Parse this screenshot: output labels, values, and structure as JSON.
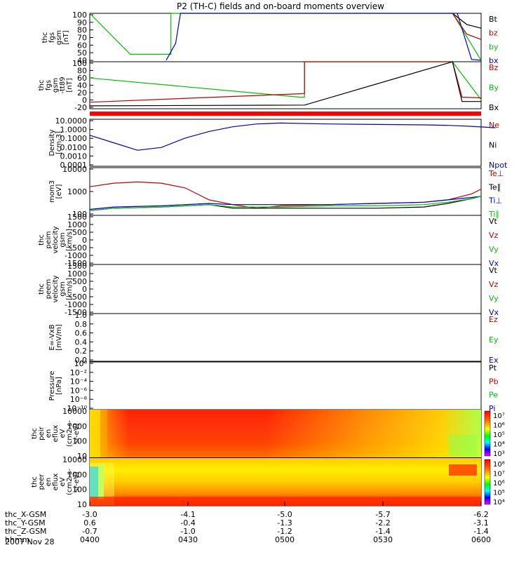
{
  "title": "P2 (TH-C) fields and on-board moments overview",
  "date": "2007 Nov 28",
  "colors": {
    "black": "#000000",
    "red": "#c00000",
    "green": "#00c000",
    "blue": "#0000c0"
  },
  "chart_data": [
    {
      "type": "line",
      "ylabel_lines": [
        "thc",
        "fgs",
        "gsm",
        "[nT]"
      ],
      "yticks": [
        "100",
        "90",
        "80",
        "70",
        "60",
        "50",
        "40"
      ],
      "ylim": [
        35,
        100
      ],
      "legend": [
        {
          "label": "Bt",
          "color": "black"
        },
        {
          "label": "bz",
          "color": "red"
        },
        {
          "label": "by",
          "color": "green"
        },
        {
          "label": "bx",
          "color": "blue"
        }
      ],
      "series": [
        {
          "color": "green",
          "x": [
            0,
            0.85,
            0.85,
            1.25,
            1.7,
            1.7,
            7.6,
            8.2
          ],
          "y": [
            100,
            45,
            45,
            45,
            45,
            100,
            100,
            37
          ]
        },
        {
          "color": "blue",
          "x": [
            1.6,
            1.8,
            1.9,
            7.7,
            8.0,
            8.2
          ],
          "y": [
            37,
            60,
            100,
            100,
            38,
            37
          ]
        },
        {
          "color": "black",
          "x": [
            7.6,
            7.9,
            8.2
          ],
          "y": [
            100,
            85,
            80
          ]
        },
        {
          "color": "red",
          "x": [
            7.6,
            7.9,
            8.2
          ],
          "y": [
            100,
            72,
            65
          ]
        }
      ]
    },
    {
      "type": "line",
      "ylabel_lines": [
        "thc",
        "fgs",
        "gsm",
        "-tt89",
        "[nT]"
      ],
      "yticks": [
        "100",
        "80",
        "60",
        "40",
        "20",
        "0",
        "-20"
      ],
      "ylim": [
        -30,
        100
      ],
      "legend": [
        {
          "label": "Bz",
          "color": "red"
        },
        {
          "label": "By",
          "color": "green"
        },
        {
          "label": "Bx",
          "color": "black"
        }
      ],
      "series": [
        {
          "color": "green",
          "x": [
            0,
            4.4,
            4.5,
            4.5,
            7.6,
            8.2
          ],
          "y": [
            55,
            2,
            2,
            100,
            100,
            -5
          ]
        },
        {
          "color": "red",
          "x": [
            0,
            4.5,
            4.5,
            7.6,
            7.8,
            8.2
          ],
          "y": [
            -12,
            12,
            100,
            100,
            2,
            0
          ]
        },
        {
          "color": "black",
          "x": [
            0,
            4.5,
            7.6,
            7.8,
            8.2
          ],
          "y": [
            -22,
            -20,
            100,
            -10,
            -10
          ]
        }
      ]
    },
    {
      "type": "line",
      "ylabel_lines": [
        "Density",
        "[cm-3]"
      ],
      "yticks": [
        "10.0000",
        "1.0000",
        "0.1000",
        "0.0100",
        "0.0010",
        "0.0001"
      ],
      "ylim": [
        -4,
        1
      ],
      "ylog": true,
      "legend": [
        {
          "label": "Ne",
          "color": "red"
        },
        {
          "label": "Ni",
          "color": "black"
        },
        {
          "label": "Npot",
          "color": "blue"
        }
      ],
      "series": [
        {
          "color": "blue",
          "x": [
            0,
            0.5,
            1.0,
            1.5,
            2.0,
            2.5,
            3.0,
            3.5,
            4.0,
            5.0,
            6.0,
            7.0,
            7.5,
            8.0,
            8.5
          ],
          "y": [
            -0.7,
            -1.5,
            -2.3,
            -2.0,
            -1.0,
            -0.3,
            0.2,
            0.5,
            0.6,
            0.5,
            0.45,
            0.4,
            0.35,
            0.25,
            0.1
          ]
        }
      ]
    },
    {
      "type": "line",
      "ylabel_lines": [
        "mom3",
        "[eV]"
      ],
      "yticks": [
        "10000",
        "1000",
        "100"
      ],
      "ylim": [
        2,
        4
      ],
      "ylog": true,
      "legend": [
        {
          "label": "Te⊥",
          "color": "red"
        },
        {
          "label": "Te∥",
          "color": "black"
        },
        {
          "label": "Ti⊥",
          "color": "blue"
        },
        {
          "label": "Ti∥",
          "color": "green"
        }
      ],
      "series": [
        {
          "color": "red",
          "x": [
            0,
            0.5,
            1.0,
            1.5,
            2.0,
            2.5,
            3.0,
            3.5,
            4.0,
            5.0,
            6.0,
            7.0,
            7.5,
            8.0,
            8.2
          ],
          "y": [
            3.2,
            3.35,
            3.4,
            3.35,
            3.15,
            2.65,
            2.45,
            2.3,
            2.4,
            2.45,
            2.5,
            2.55,
            2.65,
            2.9,
            3.1
          ]
        },
        {
          "color": "black",
          "x": [
            0,
            0.5,
            1.5,
            2.0,
            2.5,
            3.0,
            4.0,
            5.0,
            6.0,
            7.0,
            7.5,
            8.0,
            8.2
          ],
          "y": [
            2.2,
            2.3,
            2.35,
            2.4,
            2.45,
            2.3,
            2.3,
            2.3,
            2.3,
            2.35,
            2.5,
            2.7,
            2.8
          ]
        },
        {
          "color": "blue",
          "x": [
            0,
            0.5,
            1.5,
            2.0,
            2.5,
            3.0,
            4.0,
            5.0,
            6.0,
            7.0,
            7.5,
            8.0,
            8.2
          ],
          "y": [
            2.25,
            2.35,
            2.4,
            2.45,
            2.5,
            2.45,
            2.45,
            2.45,
            2.5,
            2.55,
            2.65,
            2.75,
            2.8
          ]
        },
        {
          "color": "green",
          "x": [
            0,
            0.5,
            1.5,
            2.0,
            2.5,
            3.0,
            4.0,
            5.0,
            6.0,
            7.0,
            7.5,
            8.0,
            8.2
          ],
          "y": [
            2.2,
            2.3,
            2.35,
            2.4,
            2.45,
            2.35,
            2.35,
            2.4,
            2.4,
            2.45,
            2.55,
            2.7,
            2.8
          ]
        }
      ]
    },
    {
      "type": "line",
      "ylabel_lines": [
        "thc",
        "peim",
        "velocity",
        "gsm",
        "[km/s]"
      ],
      "yticks": [
        "1500",
        "1000",
        "500",
        "0",
        "-500",
        "-1000",
        "-1500"
      ],
      "ylim": [
        -1500,
        1500
      ],
      "legend": [
        {
          "label": "Vt",
          "color": "black"
        },
        {
          "label": "Vz",
          "color": "red"
        },
        {
          "label": "Vy",
          "color": "green"
        },
        {
          "label": "Vx",
          "color": "blue"
        }
      ],
      "series": []
    },
    {
      "type": "line",
      "ylabel_lines": [
        "thc",
        "peem",
        "velocity",
        "gsm",
        "[km/s]"
      ],
      "yticks": [
        "1500",
        "1000",
        "500",
        "0",
        "-500",
        "-1000",
        "-1500"
      ],
      "ylim": [
        -1500,
        1500
      ],
      "legend": [
        {
          "label": "Vt",
          "color": "black"
        },
        {
          "label": "Vz",
          "color": "red"
        },
        {
          "label": "Vy",
          "color": "green"
        },
        {
          "label": "Vx",
          "color": "blue"
        }
      ],
      "series": []
    },
    {
      "type": "line",
      "ylabel_lines": [
        "E=-VxB",
        "[mV/m]"
      ],
      "yticks": [
        "1.0",
        "0.8",
        "0.6",
        "0.4",
        "0.2",
        "0.0"
      ],
      "ylim": [
        0,
        1
      ],
      "legend": [
        {
          "label": "Ez",
          "color": "red"
        },
        {
          "label": "Ey",
          "color": "green"
        },
        {
          "label": "Ex",
          "color": "blue"
        }
      ],
      "series": []
    },
    {
      "type": "line",
      "ylabel_lines": [
        "Pressure",
        "[nPa]"
      ],
      "yticks": [
        "10⁰",
        "10⁻²",
        "10⁻⁴",
        "10⁻⁶",
        "10⁻⁸",
        "10⁻¹⁰"
      ],
      "ylim": [
        -10,
        0
      ],
      "ylog": true,
      "legend": [
        {
          "label": "Pt",
          "color": "black"
        },
        {
          "label": "Pb",
          "color": "red"
        },
        {
          "label": "Pe",
          "color": "green"
        },
        {
          "label": "Pi",
          "color": "blue"
        }
      ],
      "series": []
    },
    {
      "type": "heatmap",
      "ylabel_lines": [
        "thc",
        "peir",
        "en",
        "eflux",
        "eV",
        "(cm2-s-",
        "sr-eV)"
      ],
      "yticks": [
        "10000",
        "1000",
        "100",
        "10"
      ],
      "colorbar": [
        "10⁷",
        "10⁶",
        "10⁵",
        "10⁴",
        "10³"
      ]
    },
    {
      "type": "heatmap",
      "ylabel_lines": [
        "thc",
        "peer",
        "en",
        "eflux",
        "eV",
        "(cm2-s-",
        "sr-eV)"
      ],
      "yticks": [
        "10000",
        "1000",
        "100",
        "10"
      ],
      "colorbar": [
        "10⁸",
        "10⁷",
        "10⁶",
        "10⁵",
        "10⁴"
      ]
    }
  ],
  "xaxis": {
    "rows": [
      {
        "label": "thc_X-GSM",
        "values": [
          "-3.0",
          "-4.1",
          "-5.0",
          "-5.7",
          "-6.2"
        ]
      },
      {
        "label": "thc_Y-GSM",
        "values": [
          "0.6",
          "-0.4",
          "-1.3",
          "-2.2",
          "-3.1"
        ]
      },
      {
        "label": "thc_Z-GSM",
        "values": [
          "-0.7",
          "-1.0",
          "-1.2",
          "-1.4",
          "-1.4"
        ]
      },
      {
        "label": "hhmm",
        "values": [
          "0400",
          "0430",
          "0500",
          "0530",
          "0600"
        ]
      }
    ]
  }
}
